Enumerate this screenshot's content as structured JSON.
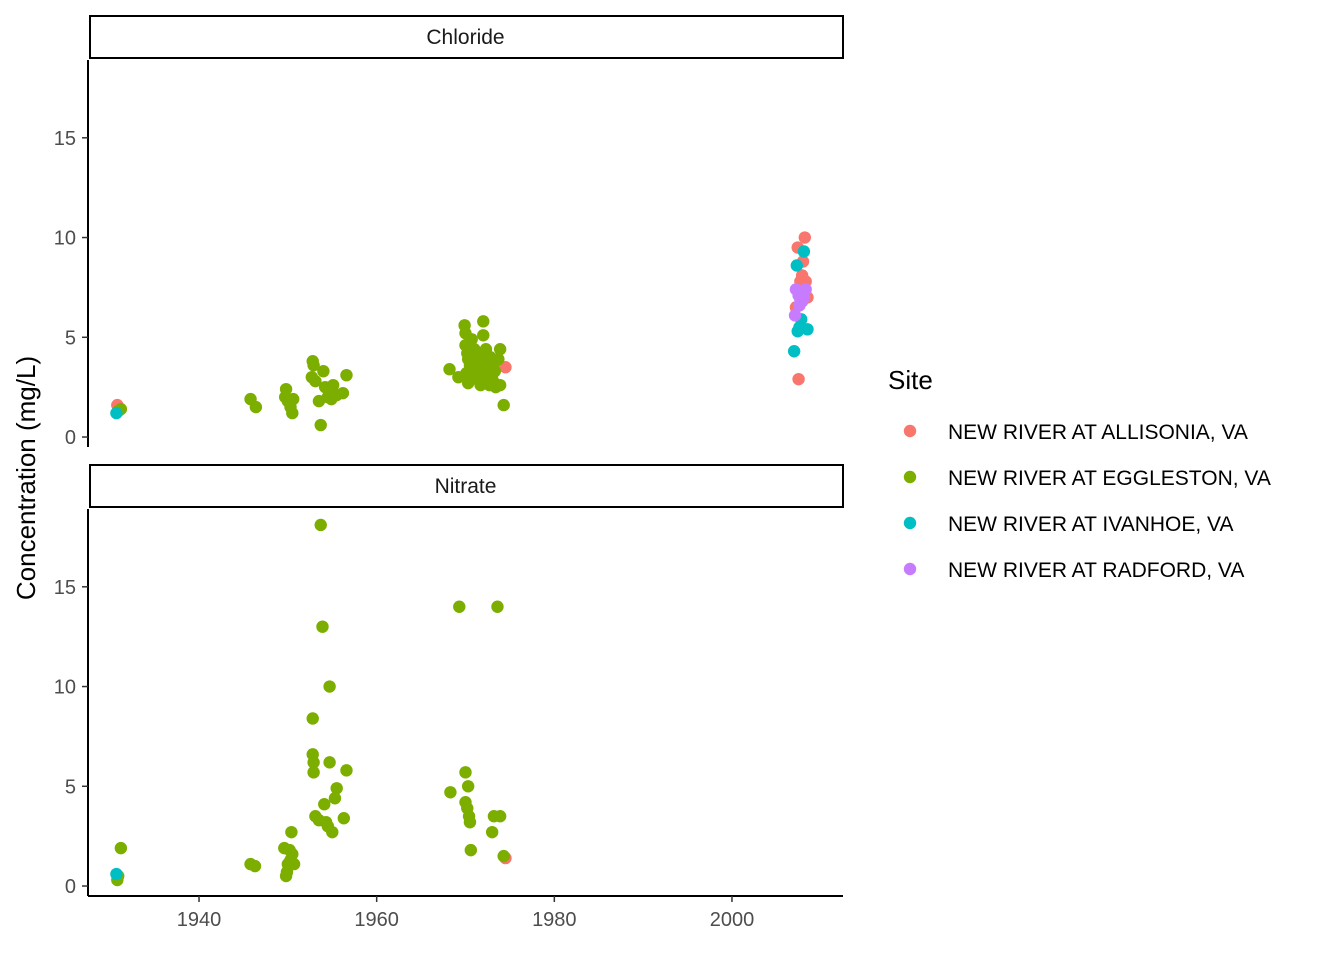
{
  "chart_data": {
    "type": "scatter",
    "title": "",
    "xlabel": "",
    "ylabel": "Concentration (mg/L)",
    "xlim": [
      1927.5,
      2012.5
    ],
    "ylim": [
      -0.5,
      18.9
    ],
    "xticks": [
      1940,
      1960,
      1980,
      2000
    ],
    "yticks": [
      0,
      5,
      10,
      15
    ],
    "grid": false,
    "legend": {
      "title": "Site",
      "position": "right",
      "entries": [
        {
          "name": "NEW RIVER AT ALLISONIA, VA",
          "color": "#F8766D"
        },
        {
          "name": "NEW RIVER AT EGGLESTON, VA",
          "color": "#7CAE00"
        },
        {
          "name": "NEW RIVER AT IVANHOE, VA",
          "color": "#00BFC4"
        },
        {
          "name": "NEW RIVER AT RADFORD, VA",
          "color": "#C77CFF"
        }
      ]
    },
    "panels": [
      {
        "label": "Chloride",
        "series": [
          {
            "name": "NEW RIVER AT ALLISONIA, VA",
            "points": [
              [
                1930.8,
                1.6
              ],
              [
                2007.4,
                9.5
              ],
              [
                2008.2,
                10.0
              ],
              [
                2008.0,
                8.8
              ],
              [
                2007.9,
                8.1
              ],
              [
                2008.3,
                7.8
              ],
              [
                2007.7,
                7.8
              ],
              [
                2007.2,
                6.5
              ],
              [
                2008.5,
                7.0
              ],
              [
                2007.5,
                2.9
              ],
              [
                1974.5,
                3.5
              ]
            ]
          },
          {
            "name": "NEW RIVER AT EGGLESTON, VA",
            "points": [
              [
                1931.2,
                1.4
              ],
              [
                1930.9,
                1.3
              ],
              [
                1945.8,
                1.9
              ],
              [
                1946.4,
                1.5
              ],
              [
                1949.8,
                2.4
              ],
              [
                1949.7,
                2.0
              ],
              [
                1950.0,
                1.8
              ],
              [
                1950.3,
                1.5
              ],
              [
                1950.5,
                1.2
              ],
              [
                1950.6,
                1.9
              ],
              [
                1952.8,
                3.8
              ],
              [
                1952.9,
                3.6
              ],
              [
                1952.7,
                3.0
              ],
              [
                1953.1,
                2.8
              ],
              [
                1953.5,
                1.8
              ],
              [
                1953.7,
                0.6
              ],
              [
                1954.0,
                3.3
              ],
              [
                1954.2,
                2.5
              ],
              [
                1954.5,
                2.0
              ],
              [
                1954.6,
                2.3
              ],
              [
                1954.9,
                1.9
              ],
              [
                1955.1,
                2.6
              ],
              [
                1955.5,
                2.1
              ],
              [
                1956.2,
                2.2
              ],
              [
                1956.6,
                3.1
              ],
              [
                1968.2,
                3.4
              ],
              [
                1969.2,
                3.0
              ],
              [
                1969.9,
                5.6
              ],
              [
                1970.0,
                5.2
              ],
              [
                1970.0,
                4.6
              ],
              [
                1970.2,
                4.2
              ],
              [
                1970.3,
                3.9
              ],
              [
                1970.5,
                3.6
              ],
              [
                1970.1,
                3.2
              ],
              [
                1970.3,
                2.7
              ],
              [
                1970.7,
                4.9
              ],
              [
                1970.8,
                3.0
              ],
              [
                1971.0,
                4.4
              ],
              [
                1971.1,
                3.8
              ],
              [
                1971.2,
                3.4
              ],
              [
                1971.3,
                2.9
              ],
              [
                1971.4,
                4.0
              ],
              [
                1971.5,
                3.5
              ],
              [
                1971.6,
                3.1
              ],
              [
                1971.7,
                2.6
              ],
              [
                1971.8,
                4.1
              ],
              [
                1971.9,
                3.7
              ],
              [
                1972.0,
                5.8
              ],
              [
                1972.0,
                5.1
              ],
              [
                1972.1,
                3.3
              ],
              [
                1972.2,
                2.8
              ],
              [
                1972.3,
                4.4
              ],
              [
                1972.4,
                3.9
              ],
              [
                1972.5,
                3.5
              ],
              [
                1972.6,
                3.0
              ],
              [
                1972.7,
                2.6
              ],
              [
                1972.8,
                4.0
              ],
              [
                1972.9,
                3.6
              ],
              [
                1973.0,
                3.1
              ],
              [
                1973.1,
                2.8
              ],
              [
                1973.2,
                3.7
              ],
              [
                1973.3,
                3.3
              ],
              [
                1973.4,
                2.5
              ],
              [
                1973.7,
                3.9
              ],
              [
                1973.9,
                4.4
              ],
              [
                1973.9,
                2.6
              ],
              [
                1974.3,
                1.6
              ]
            ]
          },
          {
            "name": "NEW RIVER AT IVANHOE, VA",
            "points": [
              [
                1930.7,
                1.2
              ],
              [
                2007.3,
                8.6
              ],
              [
                2008.1,
                9.3
              ],
              [
                2007.0,
                4.3
              ],
              [
                2007.4,
                5.3
              ],
              [
                2007.6,
                5.5
              ],
              [
                2007.8,
                5.9
              ],
              [
                2008.5,
                5.4
              ]
            ]
          },
          {
            "name": "NEW RIVER AT RADFORD, VA",
            "points": [
              [
                2007.1,
                6.1
              ],
              [
                2007.2,
                7.4
              ],
              [
                2007.5,
                7.1
              ],
              [
                2007.7,
                6.9
              ],
              [
                2007.9,
                7.3
              ],
              [
                2008.1,
                7.0
              ],
              [
                2008.3,
                7.4
              ],
              [
                2007.6,
                6.6
              ],
              [
                2007.9,
                6.8
              ]
            ]
          }
        ]
      },
      {
        "label": "Nitrate",
        "series": [
          {
            "name": "NEW RIVER AT ALLISONIA, VA",
            "points": [
              [
                1974.5,
                1.4
              ]
            ]
          },
          {
            "name": "NEW RIVER AT EGGLESTON, VA",
            "points": [
              [
                1930.8,
                0.3
              ],
              [
                1930.9,
                0.5
              ],
              [
                1931.2,
                1.9
              ],
              [
                1945.8,
                1.1
              ],
              [
                1946.3,
                1.0
              ],
              [
                1949.6,
                1.9
              ],
              [
                1949.8,
                0.5
              ],
              [
                1949.9,
                0.7
              ],
              [
                1950.0,
                1.1
              ],
              [
                1950.2,
                1.8
              ],
              [
                1950.3,
                1.3
              ],
              [
                1950.5,
                1.6
              ],
              [
                1950.7,
                1.1
              ],
              [
                1950.4,
                2.7
              ],
              [
                1952.8,
                8.4
              ],
              [
                1952.8,
                6.6
              ],
              [
                1952.9,
                6.2
              ],
              [
                1952.9,
                5.7
              ],
              [
                1953.1,
                3.5
              ],
              [
                1953.5,
                3.3
              ],
              [
                1953.7,
                18.1
              ],
              [
                1953.9,
                13.0
              ],
              [
                1954.1,
                4.1
              ],
              [
                1954.3,
                3.2
              ],
              [
                1954.5,
                3.0
              ],
              [
                1954.7,
                10.0
              ],
              [
                1954.7,
                6.2
              ],
              [
                1955.0,
                2.7
              ],
              [
                1955.3,
                4.4
              ],
              [
                1955.5,
                4.9
              ],
              [
                1956.3,
                3.4
              ],
              [
                1956.6,
                5.8
              ],
              [
                1968.3,
                4.7
              ],
              [
                1969.3,
                14.0
              ],
              [
                1970.0,
                5.7
              ],
              [
                1970.0,
                4.2
              ],
              [
                1970.2,
                3.9
              ],
              [
                1970.3,
                5.0
              ],
              [
                1970.4,
                3.5
              ],
              [
                1970.5,
                3.2
              ],
              [
                1970.6,
                1.8
              ],
              [
                1973.0,
                2.7
              ],
              [
                1973.2,
                3.5
              ],
              [
                1973.6,
                14.0
              ],
              [
                1973.9,
                3.5
              ],
              [
                1974.3,
                1.5
              ]
            ]
          },
          {
            "name": "NEW RIVER AT IVANHOE, VA",
            "points": [
              [
                1930.7,
                0.6
              ]
            ]
          },
          {
            "name": "NEW RIVER AT RADFORD, VA",
            "points": []
          }
        ]
      }
    ]
  }
}
